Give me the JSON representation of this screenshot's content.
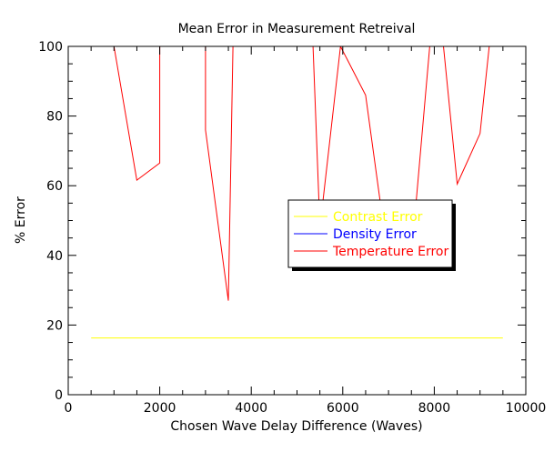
{
  "chart_data": {
    "type": "line",
    "title": "Mean Error in Measurement Retreival",
    "xlabel": "Chosen Wave Delay Difference (Waves)",
    "ylabel": "% Error",
    "xlim": [
      0,
      10000
    ],
    "ylim": [
      0,
      100
    ],
    "x_ticks": [
      0,
      2000,
      4000,
      6000,
      8000,
      10000
    ],
    "x_tick_labels": [
      "0",
      "2000",
      "4000",
      "6000",
      "8000",
      "10000"
    ],
    "y_ticks": [
      0,
      20,
      40,
      60,
      80,
      100
    ],
    "y_tick_labels": [
      "0",
      "20",
      "40",
      "60",
      "80",
      "100"
    ],
    "x_minor_step": 500,
    "y_minor_step": 5,
    "grid": false,
    "legend_position": "center-right",
    "series": [
      {
        "name": "Contrast Error",
        "color": "#ffff00",
        "x": [
          500,
          9500
        ],
        "y": [
          16.3,
          16.3
        ]
      },
      {
        "name": "Density Error",
        "color": "#0000ff",
        "x": [],
        "y": []
      },
      {
        "name": "Temperature Error",
        "color": "#ff0000",
        "x": [
          1000,
          1500,
          2000,
          2000,
          2000,
          3000,
          3000,
          3500,
          3600,
          5350,
          5500,
          5950,
          6500,
          7000,
          7500,
          7900,
          8200,
          8500,
          9000,
          9200
        ],
        "y": [
          100,
          61.6,
          66.5,
          96,
          100,
          100,
          76,
          27,
          100,
          100,
          48,
          100,
          86,
          38,
          40,
          100,
          100,
          60.5,
          75,
          100
        ]
      }
    ]
  }
}
